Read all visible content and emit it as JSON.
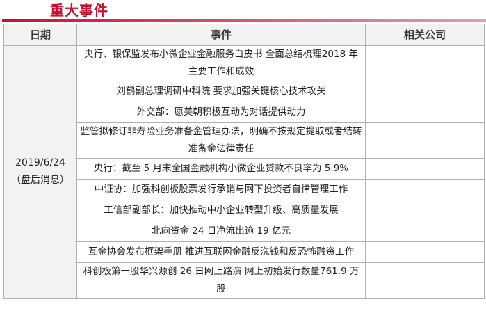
{
  "title": "重大事件",
  "headers": {
    "date": "日期",
    "event": "事件",
    "company": "相关公司"
  },
  "date": {
    "value": "2019/6/24",
    "note": "（盘后消息）"
  },
  "events": [
    "央行、银保监发布小微企业金融服务白皮书 全面总结梳理2018 年主要工作和成效",
    "刘鹤副总理调研中科院 要求加强关键核心技术攻关",
    "外交部：愿美朝积极互动为对话提供动力",
    "监管拟修订非寿险业务准备金管理办法，明确不按规定提取或者结转准备金法律责任",
    "央行：截至 5 月末全国金融机构小微企业贷款不良率为 5.9%",
    "中证协：加强科创板股票发行承销与网下投资者自律管理工作",
    "工信部副部长：加快推动中小企业转型升级、高质量发展",
    "北向资金 24 日净流出逾 19 亿元",
    "互金协会发布框架手册 推进互联网金融反洗钱和反恐怖融资工作",
    "科创板第一股华兴源创 26 日网上路演 网上初始发行数量761.9 万股"
  ],
  "colors": {
    "accent": "#c4122f",
    "header_bg": "#f2f2f2",
    "border": "#b0b0b0"
  }
}
